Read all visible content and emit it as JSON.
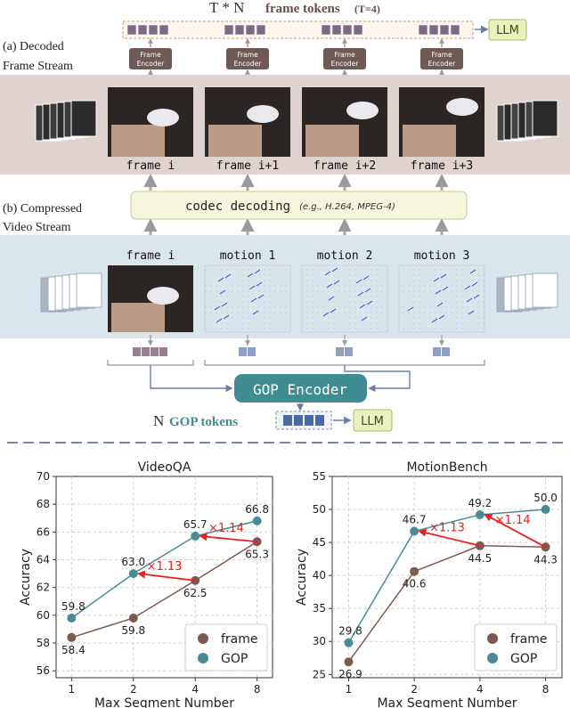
{
  "top": {
    "title_prefix": "T * N",
    "title_main": "frame tokens",
    "title_suffix": "(T=4)",
    "llm": "LLM",
    "section_a": [
      "(a) Decoded",
      "Frame Stream"
    ],
    "encoder_label": [
      "Frame",
      "Encoder"
    ],
    "frame_labels": [
      "frame i",
      "frame i+1",
      "frame i+2",
      "frame i+3"
    ],
    "section_b": [
      "(b) Compressed",
      "Video Stream"
    ],
    "codec_main": "codec decoding",
    "codec_note": "(e.g., H.264, MPEG-4)",
    "compressed_labels": [
      "frame i",
      "motion 1",
      "motion 2",
      "motion 3"
    ],
    "gop_encoder": "GOP Encoder",
    "gop_tokens_prefix": "N",
    "gop_tokens_main": "GOP tokens",
    "llm2": "LLM"
  },
  "chart_data": [
    {
      "type": "line",
      "title": "VideoQA",
      "xlabel": "Max Segment Number",
      "ylabel": "Accuracy",
      "x": [
        1,
        2,
        4,
        8
      ],
      "xscale": "log2",
      "xticks": [
        "1",
        "2",
        "4",
        "8"
      ],
      "ylim": [
        55.5,
        70
      ],
      "yticks": [
        "56",
        "58",
        "60",
        "62",
        "64",
        "66",
        "68",
        "70"
      ],
      "grid": true,
      "legend": "bottom-right",
      "series": [
        {
          "name": "frame",
          "color": "#7d5a50",
          "values": [
            58.4,
            59.8,
            62.5,
            65.3
          ],
          "labels": [
            "58.4",
            "59.8",
            "62.5",
            "65.3"
          ]
        },
        {
          "name": "GOP",
          "color": "#4a8b95",
          "values": [
            59.8,
            63.0,
            65.7,
            66.8
          ],
          "labels": [
            "59.8",
            "63.0",
            "65.7",
            "66.8"
          ]
        }
      ],
      "annotations": [
        {
          "text": "×1.13",
          "from": [
            4,
            62.5
          ],
          "to": [
            2,
            63.0
          ],
          "color": "#ee1c1c"
        },
        {
          "text": "×1.14",
          "from": [
            8,
            65.3
          ],
          "to": [
            4,
            65.7
          ],
          "color": "#ee1c1c"
        }
      ]
    },
    {
      "type": "line",
      "title": "MotionBench",
      "xlabel": "Max Segment Number",
      "ylabel": "Accuracy",
      "x": [
        1,
        2,
        4,
        8
      ],
      "xscale": "log2",
      "xticks": [
        "1",
        "2",
        "4",
        "8"
      ],
      "ylim": [
        24.5,
        55
      ],
      "yticks": [
        "25",
        "30",
        "35",
        "40",
        "45",
        "50",
        "55"
      ],
      "grid": true,
      "legend": "bottom-right",
      "series": [
        {
          "name": "frame",
          "color": "#7d5a50",
          "values": [
            26.9,
            40.6,
            44.5,
            44.3
          ],
          "labels": [
            "26.9",
            "40.6",
            "44.5",
            "44.3"
          ]
        },
        {
          "name": "GOP",
          "color": "#4a8b95",
          "values": [
            29.8,
            46.7,
            49.2,
            50.0
          ],
          "labels": [
            "29.8",
            "46.7",
            "49.2",
            "50.0"
          ]
        }
      ],
      "annotations": [
        {
          "text": "×1.13",
          "from": [
            4,
            44.5
          ],
          "to": [
            2,
            46.7
          ],
          "color": "#ee1c1c"
        },
        {
          "text": "×1.14",
          "from": [
            8,
            44.3
          ],
          "to": [
            4,
            49.2
          ],
          "color": "#ee1c1c"
        }
      ]
    }
  ]
}
